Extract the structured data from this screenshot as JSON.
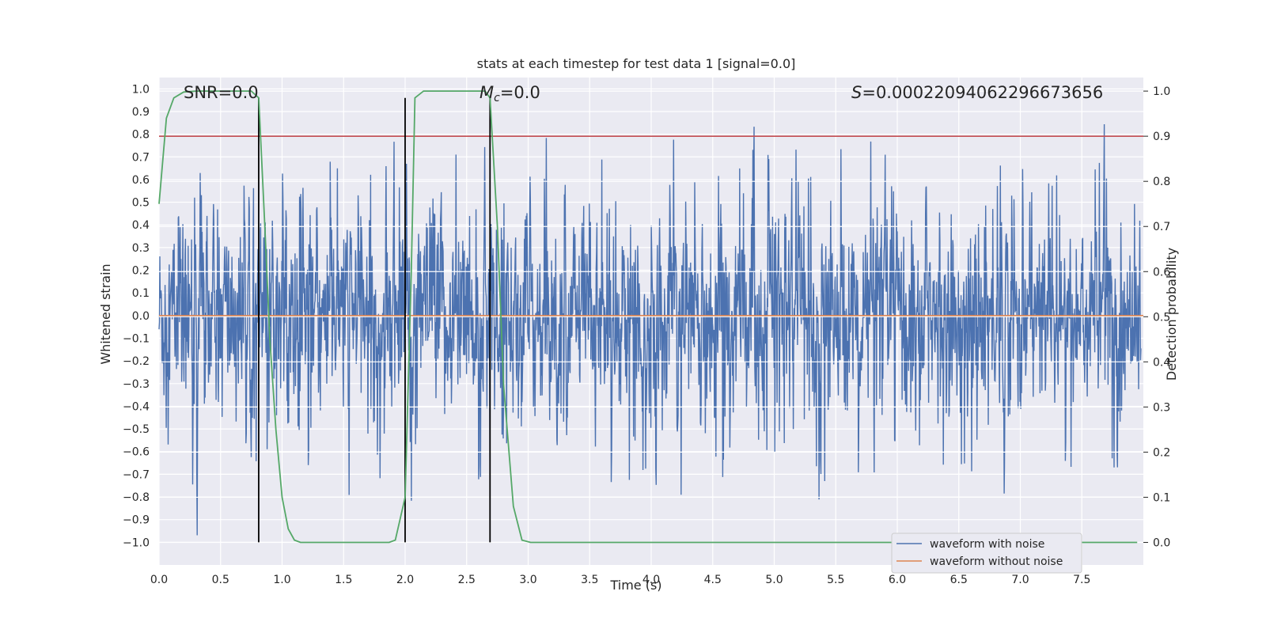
{
  "chart_data": {
    "type": "line",
    "title": "stats at each timestep for test data 1 [signal=0.0]",
    "xlabel": "Time (s)",
    "ylabel_left": "Whitened strain",
    "ylabel_right": "Detection probability",
    "xlim": [
      0.0,
      8.0
    ],
    "ylim_left": [
      -1.1,
      1.05
    ],
    "ylim_right": [
      -0.05,
      1.03
    ],
    "x_ticks": [
      "0.0",
      "0.5",
      "1.0",
      "1.5",
      "2.0",
      "2.5",
      "3.0",
      "3.5",
      "4.0",
      "4.5",
      "5.0",
      "5.5",
      "6.0",
      "6.5",
      "7.0",
      "7.5"
    ],
    "y_left_ticks": [
      "1.0",
      "0.9",
      "0.8",
      "0.7",
      "0.6",
      "0.5",
      "0.4",
      "0.3",
      "0.2",
      "0.1",
      "0.0",
      "-0.1",
      "-0.2",
      "-0.3",
      "-0.4",
      "-0.5",
      "-0.6",
      "-0.7",
      "-0.8",
      "-0.9",
      "-1.0"
    ],
    "y_right_ticks": [
      "1.0",
      "0.9",
      "0.8",
      "0.7",
      "0.6",
      "0.5",
      "0.4",
      "0.3",
      "0.2",
      "0.1",
      "0.0"
    ],
    "annotations": {
      "snr": "SNR=0.0",
      "mc_symbol": "M",
      "mc_sub": "c",
      "mc_value": "=0.0",
      "s_symbol": "S",
      "s_value": "=0.00022094062296673656"
    },
    "threshold": {
      "axis": "right",
      "value": 0.9,
      "color": "#c44e52"
    },
    "vertical_lines": [
      0.81,
      2.0,
      2.69
    ],
    "series": [
      {
        "name": "waveform with noise",
        "axis": "left",
        "color": "#4c72b0",
        "note": "dense noise trace, approx. amplitude ±0.4 with peaks near ±1.0"
      },
      {
        "name": "waveform without noise",
        "axis": "left",
        "color": "#dd8452",
        "x": [
          0.0,
          8.0
        ],
        "y": [
          0.0,
          0.0
        ]
      },
      {
        "axis": "right",
        "color": "#55a868",
        "x": [
          0.0,
          0.06,
          0.12,
          0.2,
          0.3,
          0.5,
          0.75,
          0.81,
          0.86,
          0.9,
          0.95,
          1.0,
          1.05,
          1.1,
          1.15,
          1.25,
          1.5,
          1.75,
          1.87,
          1.92,
          2.0,
          2.05,
          2.08,
          2.15,
          2.3,
          2.6,
          2.65,
          2.69,
          2.75,
          2.8,
          2.88,
          2.95,
          3.02,
          3.2,
          4.0,
          5.0,
          6.0,
          7.0,
          7.95
        ],
        "y": [
          0.75,
          0.94,
          0.985,
          0.998,
          1.0,
          1.0,
          1.0,
          0.985,
          0.7,
          0.45,
          0.25,
          0.1,
          0.03,
          0.005,
          0.0,
          0.0,
          0.0,
          0.0,
          0.0,
          0.005,
          0.1,
          0.6,
          0.985,
          1.0,
          1.0,
          1.0,
          1.0,
          0.985,
          0.7,
          0.35,
          0.08,
          0.005,
          0.0,
          0.0,
          0.0,
          0.0,
          0.0,
          0.0,
          0.0
        ]
      }
    ],
    "legend": {
      "position": "bottom-right",
      "entries": [
        {
          "label": "waveform with noise",
          "color": "#4c72b0"
        },
        {
          "label": "waveform without noise",
          "color": "#dd8452"
        }
      ]
    },
    "grid": true,
    "colors": {
      "plot_bg": "#eaeaf2",
      "grid": "#ffffff",
      "vlines": "#000000"
    }
  }
}
